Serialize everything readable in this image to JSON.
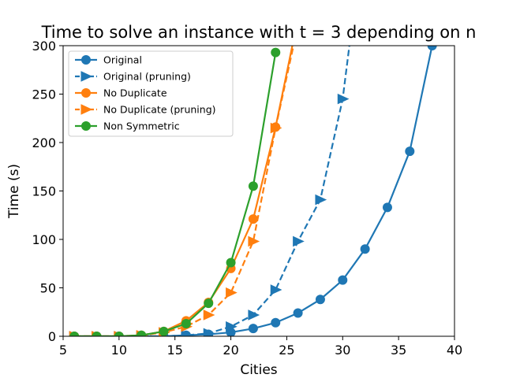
{
  "chart_data": {
    "type": "line",
    "title": "Time to solve an instance with t = 3 depending on n",
    "xlabel": "Cities",
    "ylabel": "Time (s)",
    "xlim": [
      5,
      40
    ],
    "ylim": [
      0,
      300
    ],
    "xticks": [
      5,
      10,
      15,
      20,
      25,
      30,
      35,
      40
    ],
    "yticks": [
      0,
      50,
      100,
      150,
      200,
      250,
      300
    ],
    "grid": false,
    "legend_position": "top-left",
    "series": [
      {
        "name": "Original",
        "color": "#1f77b4",
        "linestyle": "solid",
        "marker": "circle",
        "x": [
          6,
          8,
          10,
          12,
          14,
          16,
          18,
          20,
          22,
          24,
          26,
          28,
          30,
          32,
          34,
          36,
          38
        ],
        "y": [
          0,
          0,
          0,
          0,
          0,
          1,
          2,
          4,
          8,
          14,
          24,
          38,
          58,
          90,
          133,
          191,
          300
        ]
      },
      {
        "name": "Original (pruning)",
        "color": "#1f77b4",
        "linestyle": "dashed",
        "marker": "triangle-right",
        "x": [
          6,
          8,
          10,
          12,
          14,
          16,
          18,
          20,
          22,
          24,
          26,
          28,
          30,
          30.6
        ],
        "y": [
          0,
          0,
          0,
          0,
          0,
          1,
          3,
          10,
          22,
          48,
          98,
          141,
          245,
          300
        ]
      },
      {
        "name": "No Duplicate",
        "color": "#ff7f0e",
        "linestyle": "solid",
        "marker": "circle",
        "x": [
          6,
          8,
          10,
          12,
          14,
          16,
          18,
          20,
          22,
          24,
          25.5
        ],
        "y": [
          0,
          0,
          0,
          1,
          5,
          16,
          35,
          70,
          121,
          216,
          300
        ]
      },
      {
        "name": "No Duplicate (pruning)",
        "color": "#ff7f0e",
        "linestyle": "dashed",
        "marker": "triangle-right",
        "x": [
          6,
          8,
          10,
          12,
          14,
          16,
          18,
          20,
          22,
          24,
          25.6
        ],
        "y": [
          0,
          0,
          0,
          1,
          4,
          10,
          22,
          45,
          98,
          215,
          300
        ]
      },
      {
        "name": "Non Symmetric",
        "color": "#2ca02c",
        "linestyle": "solid",
        "marker": "circle",
        "x": [
          6,
          8,
          10,
          12,
          14,
          16,
          18,
          20,
          22,
          24
        ],
        "y": [
          0,
          0,
          0,
          1,
          5,
          13,
          34,
          76,
          155,
          293
        ]
      }
    ]
  }
}
